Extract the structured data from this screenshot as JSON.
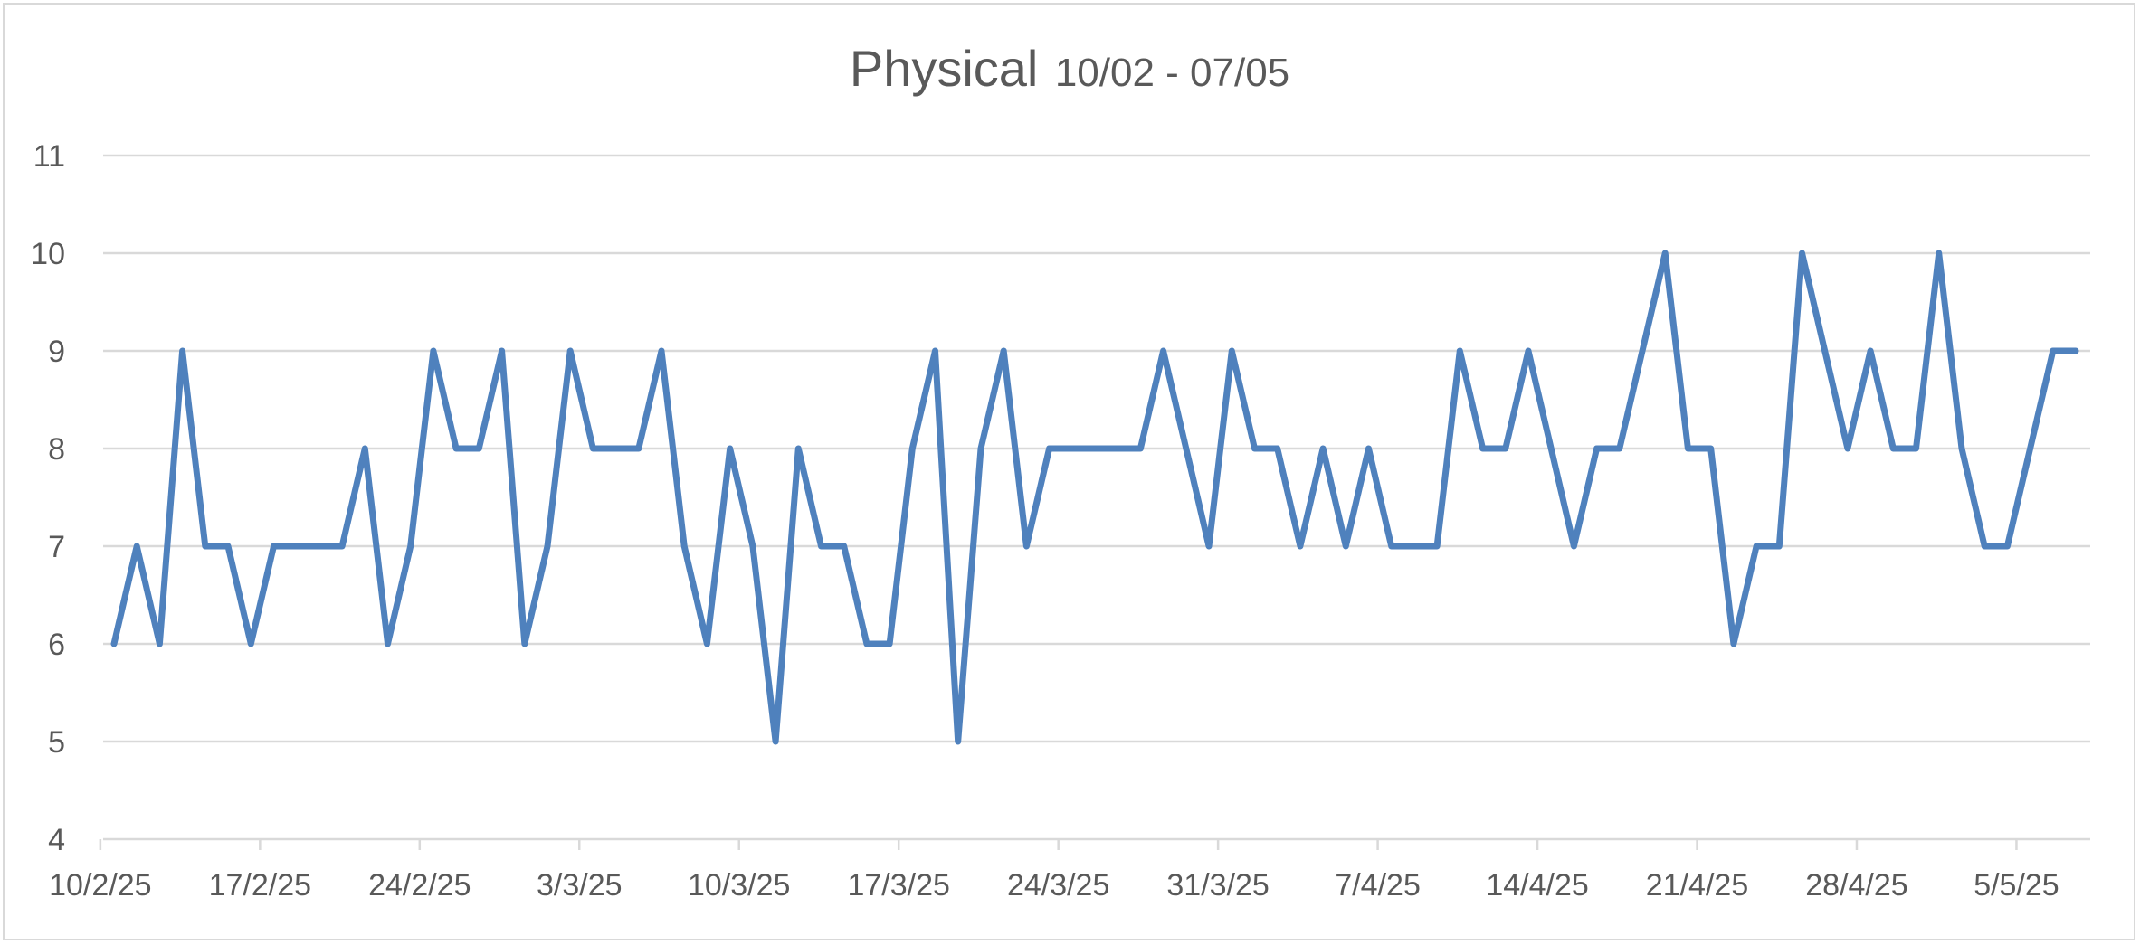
{
  "chart_data": {
    "type": "line",
    "title": "Physical",
    "subtitle": "10/02 - 07/05",
    "xlabel": "",
    "ylabel": "",
    "ylim": [
      4,
      11
    ],
    "yticks": [
      4,
      5,
      6,
      7,
      8,
      9,
      10,
      11
    ],
    "grid": true,
    "legend": "none",
    "x_tick_labels": [
      "10/2/25",
      "17/2/25",
      "24/2/25",
      "3/3/25",
      "10/3/25",
      "17/3/25",
      "24/3/25",
      "31/3/25",
      "7/4/25",
      "14/4/25",
      "21/4/25",
      "28/4/25",
      "5/5/25"
    ],
    "x_start": "10/2/25",
    "x_end": "7/5/25",
    "series": [
      {
        "name": "Physical",
        "color": "#4f81bd",
        "values": [
          6,
          7,
          6,
          9,
          7,
          7,
          6,
          7,
          7,
          7,
          7,
          8,
          6,
          7,
          9,
          8,
          8,
          9,
          6,
          7,
          9,
          8,
          8,
          8,
          9,
          7,
          6,
          8,
          7,
          5,
          8,
          7,
          7,
          6,
          6,
          8,
          9,
          5,
          8,
          9,
          7,
          8,
          8,
          8,
          8,
          8,
          9,
          8,
          7,
          9,
          8,
          8,
          7,
          8,
          7,
          8,
          7,
          7,
          7,
          9,
          8,
          8,
          9,
          8,
          7,
          8,
          8,
          9,
          10,
          8,
          8,
          6,
          7,
          7,
          10,
          9,
          8,
          9,
          8,
          8,
          10,
          8,
          7,
          7,
          8,
          9,
          9
        ]
      }
    ]
  }
}
